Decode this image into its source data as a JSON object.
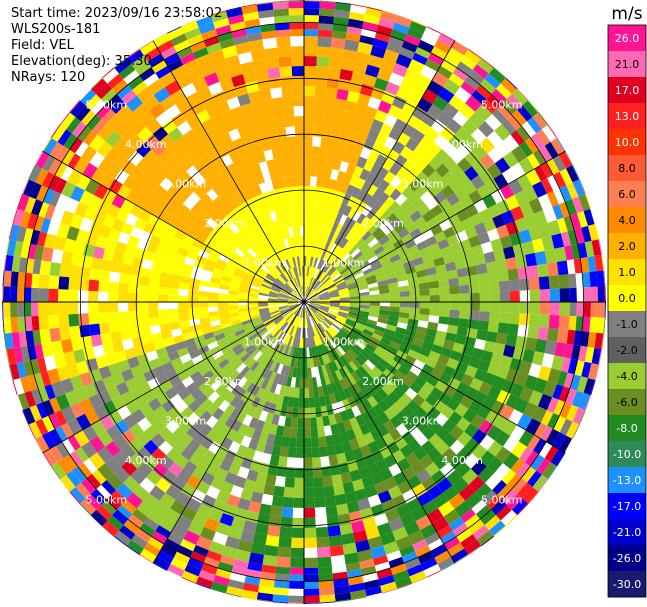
{
  "header": {
    "start_time": "Start time: 2023/09/16 23:58:02",
    "instrument": "WLS200s-181",
    "field": "Field: VEL",
    "elevation": "Elevation(deg): 35.30",
    "nrays": "NRays: 120"
  },
  "colorbar": {
    "unit": "m/s",
    "levels": [
      "26.0",
      "21.0",
      "17.0",
      "13.0",
      "10.0",
      "8.0",
      "6.0",
      "4.0",
      "2.0",
      "1.0",
      "0.0",
      "-1.0",
      "-2.0",
      "-4.0",
      "-6.0",
      "-8.0",
      "-10.0",
      "-13.0",
      "-17.0",
      "-21.0",
      "-26.0",
      "-30.0"
    ],
    "colors": [
      "#ff1493",
      "#ff69b4",
      "#e00020",
      "#ff2020",
      "#ff3300",
      "#ff5a36",
      "#ff7f50",
      "#ff8c00",
      "#ffb000",
      "#ffe000",
      "#ffff00",
      "#808080",
      "#606060",
      "#9acd32",
      "#6b8e23",
      "#228b22",
      "#2e8b57",
      "#1e90ff",
      "#0000ff",
      "#0000cd",
      "#00008b",
      "#191970"
    ]
  },
  "chart_data": {
    "type": "ppi",
    "field": "VEL",
    "units": "m/s",
    "nrays": 120,
    "elevation_deg": 35.3,
    "range_rings_km": [
      1.0,
      2.0,
      3.0,
      4.0,
      5.0
    ],
    "ring_labels": [
      "1.00km",
      "2.00km",
      "3.00km",
      "4.00km",
      "5.00km"
    ],
    "grid": true
  }
}
